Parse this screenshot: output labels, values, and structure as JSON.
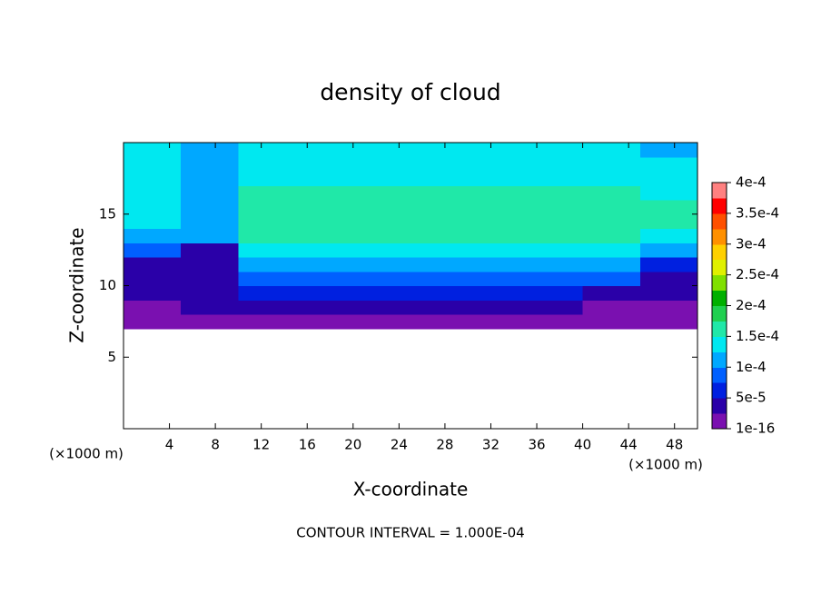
{
  "chart_data": {
    "type": "contour",
    "title": "density of cloud",
    "xlabel": "X-coordinate",
    "ylabel": "Z-coordinate",
    "x_unit": "(×1000 m)",
    "y_unit": "(×1000 m)",
    "note": "CONTOUR INTERVAL = 1.000E-04",
    "xlim": [
      0,
      50
    ],
    "ylim": [
      0,
      20
    ],
    "xticks": [
      4,
      8,
      12,
      16,
      20,
      24,
      28,
      32,
      36,
      40,
      44,
      48
    ],
    "yticks": [
      5,
      10,
      15
    ],
    "x": [
      2.5,
      7.5,
      12.5,
      17.5,
      22.5,
      27.5,
      32.5,
      37.5,
      42.5,
      47.5
    ],
    "y": [
      0.5,
      1.5,
      2.5,
      3.5,
      4.5,
      5.5,
      6.5,
      7.5,
      8.5,
      9.5,
      10.5,
      11.5,
      12.5,
      13.5,
      14.5,
      15.5,
      16.5,
      17.5,
      18.5,
      19.5
    ],
    "z": [
      [
        null,
        null,
        null,
        null,
        null,
        null,
        null,
        null,
        null,
        null
      ],
      [
        null,
        null,
        null,
        null,
        null,
        null,
        null,
        null,
        null,
        null
      ],
      [
        null,
        null,
        null,
        null,
        null,
        null,
        null,
        null,
        null,
        null
      ],
      [
        null,
        null,
        null,
        null,
        null,
        null,
        null,
        null,
        null,
        null
      ],
      [
        null,
        null,
        null,
        null,
        null,
        null,
        null,
        null,
        null,
        null
      ],
      [
        null,
        null,
        null,
        null,
        null,
        null,
        null,
        null,
        null,
        null
      ],
      [
        null,
        null,
        null,
        null,
        null,
        null,
        null,
        null,
        null,
        null
      ],
      [
        1e-05,
        1e-05,
        1e-05,
        1e-05,
        1e-05,
        1e-05,
        1e-05,
        1e-05,
        1e-05,
        1e-05
      ],
      [
        2e-05,
        3e-05,
        3e-05,
        3e-05,
        3e-05,
        3e-05,
        3e-05,
        3e-05,
        2e-05,
        2e-05
      ],
      [
        4e-05,
        4e-05,
        6e-05,
        6e-05,
        6e-05,
        6e-05,
        6e-05,
        6e-05,
        5e-05,
        4e-05
      ],
      [
        3e-05,
        5e-05,
        9e-05,
        9e-05,
        9e-05,
        9e-05,
        9e-05,
        9e-05,
        8e-05,
        4e-05
      ],
      [
        4e-05,
        4e-05,
        0.00011,
        0.00011,
        0.00011,
        0.00011,
        0.00011,
        0.00011,
        0.00011,
        6e-05
      ],
      [
        8e-05,
        5e-05,
        0.00014,
        0.00014,
        0.00014,
        0.00014,
        0.00014,
        0.00014,
        0.00014,
        0.00011
      ],
      [
        0.00011,
        0.00012,
        0.00016,
        0.00016,
        0.00016,
        0.00016,
        0.00016,
        0.00016,
        0.00016,
        0.00014
      ],
      [
        0.00013,
        0.00011,
        0.00017,
        0.00017,
        0.00017,
        0.00017,
        0.00017,
        0.00017,
        0.00017,
        0.00016
      ],
      [
        0.00014,
        0.00011,
        0.00017,
        0.00017,
        0.00017,
        0.00017,
        0.00017,
        0.00017,
        0.00017,
        0.00016
      ],
      [
        0.00015,
        0.00011,
        0.00016,
        0.00016,
        0.00016,
        0.00016,
        0.00016,
        0.00016,
        0.00016,
        0.00015
      ],
      [
        0.00014,
        0.00011,
        0.00014,
        0.00014,
        0.00014,
        0.00014,
        0.00014,
        0.00014,
        0.00014,
        0.00014
      ],
      [
        0.00013,
        0.00011,
        0.00013,
        0.00013,
        0.00013,
        0.00013,
        0.00013,
        0.00013,
        0.00013,
        0.00013
      ],
      [
        0.00013,
        0.00011,
        0.00013,
        0.00013,
        0.00013,
        0.00013,
        0.00013,
        0.00013,
        0.00013,
        0.00012
      ]
    ],
    "clim": [
      1e-16,
      0.0004
    ],
    "cticks": [
      1e-16,
      {
        "value": 5e-05,
        "label": "5e-5"
      },
      {
        "value": 0.0001,
        "label": "1e-4"
      },
      {
        "value": 0.00015,
        "label": "1.5e-4"
      },
      {
        "value": 0.0002,
        "label": "2e-4"
      },
      {
        "value": 0.00025,
        "label": "2.5e-4"
      },
      {
        "value": 0.0003,
        "label": "3e-4"
      },
      {
        "value": 0.00035,
        "label": "3.5e-4"
      },
      {
        "value": 0.0004,
        "label": "4e-4"
      }
    ],
    "colors": [
      "#7a10b0",
      "#2a00a8",
      "#0020e0",
      "#0060ff",
      "#00a8ff",
      "#00e8f0",
      "#20e8a8",
      "#20d050",
      "#00b000",
      "#80e000",
      "#e0f000",
      "#ffd000",
      "#ff9000",
      "#ff5000",
      "#ff0000",
      "#ff8080"
    ]
  }
}
